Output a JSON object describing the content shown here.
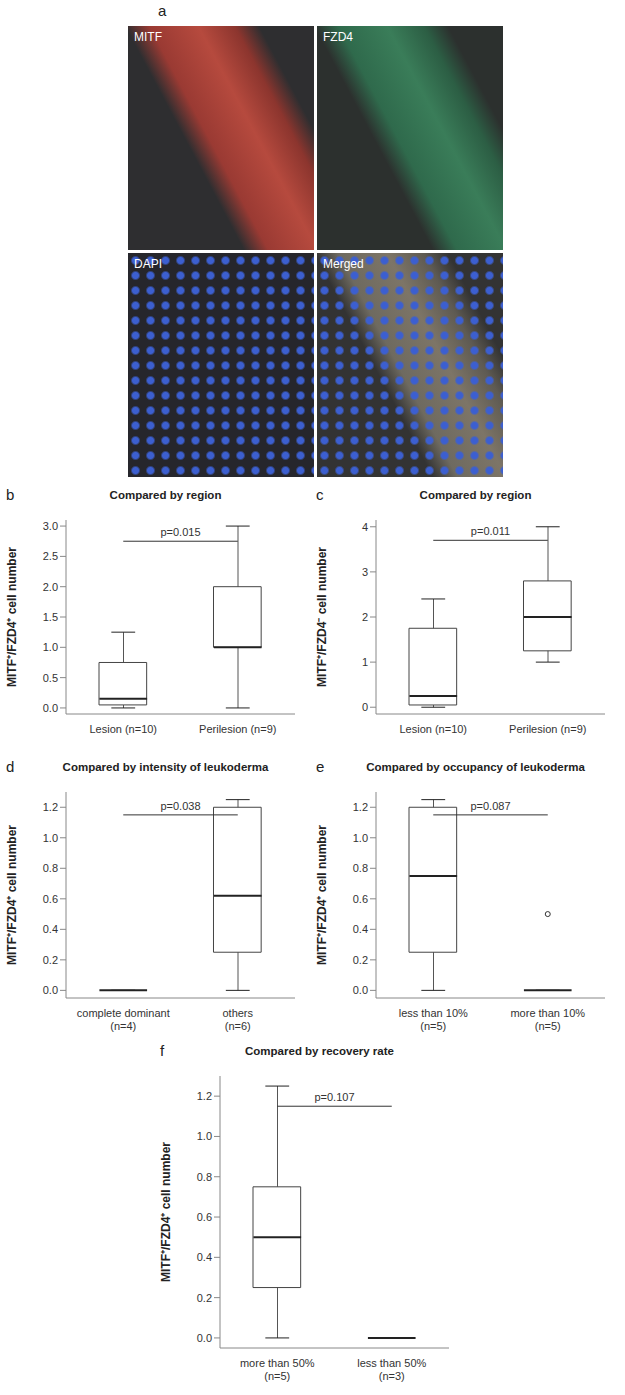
{
  "panel_a": {
    "letter": "a",
    "images": [
      "MITF",
      "FZD4",
      "DAPI",
      "Merged"
    ]
  },
  "chart_data": [
    {
      "letter": "b",
      "type": "box",
      "title": "Compared by region",
      "y_label": "MITF⁺/FZD4⁺ cell number",
      "categories": [
        "Lesion (n=10)",
        "Perilesion (n=9)"
      ],
      "stats": [
        {
          "min": 0,
          "q1": 0.05,
          "median": 0.15,
          "q3": 0.75,
          "max": 1.25,
          "outliers": []
        },
        {
          "min": 0,
          "q1": 1.0,
          "median": 1.0,
          "q3": 2.0,
          "max": 3.0,
          "outliers": []
        }
      ],
      "ylim": [
        -0.1,
        3.1
      ],
      "yticks": [
        {
          "value": 0,
          "label": "0.0"
        },
        {
          "value": 0.5,
          "label": "0.5"
        },
        {
          "value": 1,
          "label": "1.0"
        },
        {
          "value": 1.5,
          "label": "1.5"
        },
        {
          "value": 2,
          "label": "2.0"
        },
        {
          "value": 2.5,
          "label": "2.5"
        },
        {
          "value": 3,
          "label": "3.0"
        }
      ],
      "annotation": {
        "text": "p=0.015",
        "y": 2.75
      }
    },
    {
      "letter": "c",
      "type": "box",
      "title": "Compared by region",
      "y_label": "MITF⁺/FZD4⁻ cell number",
      "categories": [
        "Lesion (n=10)",
        "Perilesion (n=9)"
      ],
      "stats": [
        {
          "min": 0,
          "q1": 0.05,
          "median": 0.25,
          "q3": 1.75,
          "max": 2.4,
          "outliers": []
        },
        {
          "min": 1.0,
          "q1": 1.25,
          "median": 2.0,
          "q3": 2.8,
          "max": 4.0,
          "outliers": []
        }
      ],
      "ylim": [
        -0.15,
        4.15
      ],
      "yticks": [
        0,
        1,
        2,
        3,
        4
      ],
      "annotation": {
        "text": "p=0.011",
        "y": 3.7
      }
    },
    {
      "letter": "d",
      "type": "box",
      "title": "Compared by intensity of leukoderma",
      "y_label": "MITF⁺/FZD4⁺ cell number",
      "categories": [
        "complete dominant\n(n=4)",
        "others\n(n=6)"
      ],
      "stats": [
        {
          "min": 0,
          "q1": 0,
          "median": 0,
          "q3": 0,
          "max": 0,
          "outliers": []
        },
        {
          "min": 0,
          "q1": 0.25,
          "median": 0.62,
          "q3": 1.2,
          "max": 1.25,
          "outliers": []
        }
      ],
      "ylim": [
        -0.05,
        1.3
      ],
      "yticks": [
        {
          "value": 0,
          "label": "0.0"
        },
        {
          "value": 0.2,
          "label": "0.2"
        },
        {
          "value": 0.4,
          "label": "0.4"
        },
        {
          "value": 0.6,
          "label": "0.6"
        },
        {
          "value": 0.8,
          "label": "0.8"
        },
        {
          "value": 1,
          "label": "1.0"
        },
        {
          "value": 1.2,
          "label": "1.2"
        }
      ],
      "annotation": {
        "text": "p=0.038",
        "y": 1.15
      }
    },
    {
      "letter": "e",
      "type": "box",
      "title": "Compared by occupancy of leukoderma",
      "y_label": "MITF⁺/FZD4⁺ cell number",
      "categories": [
        "less than 10%\n(n=5)",
        "more than 10%\n(n=5)"
      ],
      "stats": [
        {
          "min": 0,
          "q1": 0.25,
          "median": 0.75,
          "q3": 1.2,
          "max": 1.25,
          "outliers": []
        },
        {
          "min": 0,
          "q1": 0,
          "median": 0,
          "q3": 0,
          "max": 0,
          "outliers": [
            0.5
          ]
        }
      ],
      "ylim": [
        -0.05,
        1.3
      ],
      "yticks": [
        {
          "value": 0,
          "label": "0.0"
        },
        {
          "value": 0.2,
          "label": "0.2"
        },
        {
          "value": 0.4,
          "label": "0.4"
        },
        {
          "value": 0.6,
          "label": "0.6"
        },
        {
          "value": 0.8,
          "label": "0.8"
        },
        {
          "value": 1,
          "label": "1.0"
        },
        {
          "value": 1.2,
          "label": "1.2"
        }
      ],
      "annotation": {
        "text": "p=0.087",
        "y": 1.15
      }
    },
    {
      "letter": "f",
      "type": "box",
      "title": "Compared by recovery rate",
      "y_label": "MITF⁺/FZD4⁺ cell number",
      "categories": [
        "more than 50%\n(n=5)",
        "less than 50%\n(n=3)"
      ],
      "stats": [
        {
          "min": 0,
          "q1": 0.25,
          "median": 0.5,
          "q3": 0.75,
          "max": 1.25,
          "outliers": []
        },
        {
          "min": 0,
          "q1": 0,
          "median": 0,
          "q3": 0,
          "max": 0,
          "outliers": []
        }
      ],
      "ylim": [
        -0.05,
        1.3
      ],
      "yticks": [
        {
          "value": 0,
          "label": "0.0"
        },
        {
          "value": 0.2,
          "label": "0.2"
        },
        {
          "value": 0.4,
          "label": "0.4"
        },
        {
          "value": 0.6,
          "label": "0.6"
        },
        {
          "value": 0.8,
          "label": "0.8"
        },
        {
          "value": 1,
          "label": "1.0"
        },
        {
          "value": 1.2,
          "label": "1.2"
        }
      ],
      "annotation": {
        "text": "p=0.107",
        "y": 1.15
      }
    }
  ]
}
